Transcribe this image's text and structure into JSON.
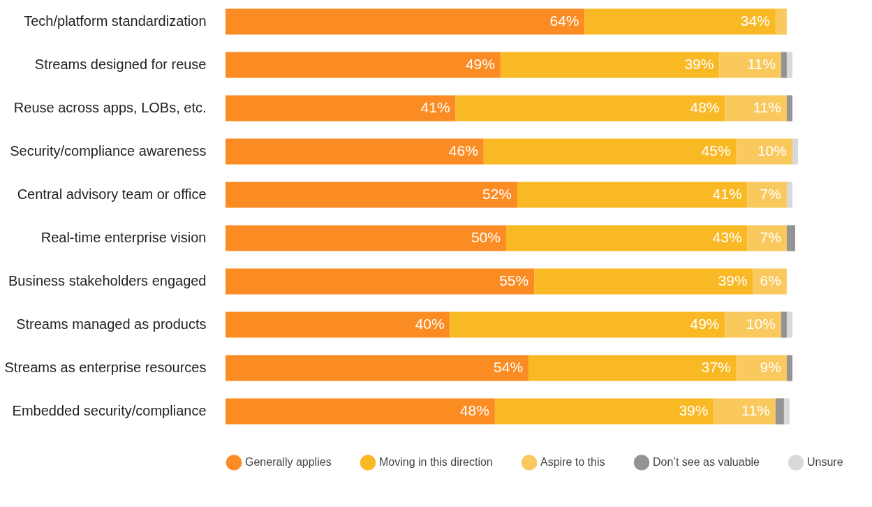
{
  "chart_data": {
    "type": "bar",
    "orientation": "horizontal",
    "stacked": true,
    "legend": "bottom",
    "categories": [
      "Tech/platform standardization",
      "Streams designed for reuse",
      "Reuse across apps, LOBs, etc.",
      "Security/compliance awareness",
      "Central advisory team or office",
      "Real-time enterprise vision",
      "Business stakeholders engaged",
      "Streams managed as products",
      "Streams as enterprise resources",
      "Embedded security/compliance"
    ],
    "series": [
      {
        "name": "Generally applies",
        "color": "#fb8c23",
        "values": [
          64,
          49,
          41,
          46,
          52,
          50,
          55,
          40,
          54,
          48
        ],
        "value_labels": [
          "64%",
          "49%",
          "41%",
          "46%",
          "52%",
          "50%",
          "55%",
          "40%",
          "54%",
          "48%"
        ]
      },
      {
        "name": "Moving in this direction",
        "color": "#f9b925",
        "values": [
          34,
          39,
          48,
          45,
          41,
          43,
          39,
          49,
          37,
          39
        ],
        "value_labels": [
          "34%",
          "39%",
          "48%",
          "45%",
          "41%",
          "43%",
          "39%",
          "49%",
          "37%",
          "39%"
        ]
      },
      {
        "name": "Aspire to this",
        "color": "#f9c95e",
        "values": [
          2,
          11,
          11,
          10,
          7,
          7,
          6,
          10,
          9,
          11
        ],
        "value_labels": [
          null,
          "11%",
          "11%",
          "10%",
          "7%",
          "7%",
          "6%",
          "10%",
          "9%",
          "11%"
        ]
      },
      {
        "name": "Don’t see as valuable",
        "color": "#939393",
        "values": [
          0,
          1,
          1,
          0,
          0,
          1.5,
          0,
          1,
          1,
          1.5
        ]
      },
      {
        "name": "Unsure",
        "color": "#d9d9d9",
        "values": [
          0,
          1,
          0,
          1,
          1,
          0,
          0,
          1,
          0,
          1
        ]
      }
    ]
  }
}
